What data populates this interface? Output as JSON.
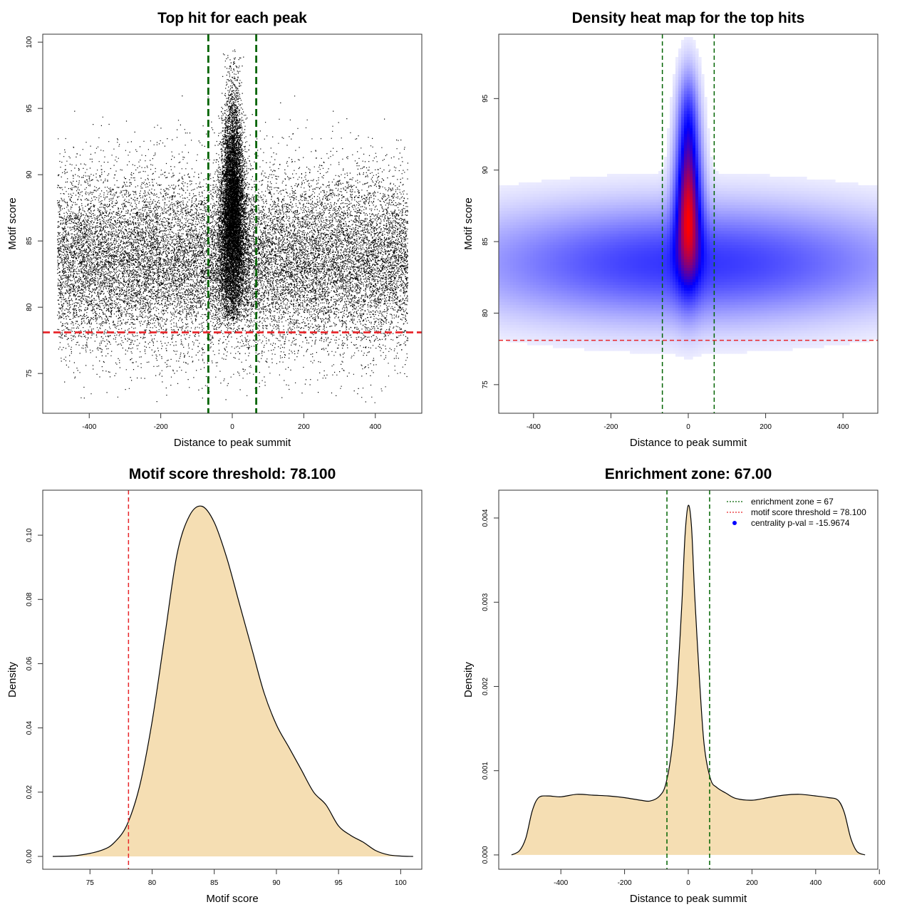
{
  "chart_data": [
    {
      "type": "scatter",
      "title": "Top hit for each peak",
      "xlabel": "Distance to peak summit",
      "ylabel": "Motif score",
      "xlim": [
        -530,
        530
      ],
      "ylim": [
        72,
        100.6
      ],
      "xticks": [
        "-400",
        "-200",
        "0",
        "200",
        "400"
      ],
      "xtick_values": [
        -400,
        -200,
        0,
        200,
        400
      ],
      "yticks": [
        "75",
        "80",
        "85",
        "90",
        "95",
        "100"
      ],
      "ytick_values": [
        75,
        80,
        85,
        90,
        95,
        100
      ],
      "point_count_approx": 30000,
      "background": {
        "x_range": [
          -490,
          490
        ],
        "score_mean": 83.5,
        "score_sd": 3.3
      },
      "central": {
        "x_center": 0,
        "x_sd": 22,
        "score_peak": 87,
        "score_max": 99.6
      },
      "vlines": [
        {
          "x": -67,
          "color": "#006400",
          "style": "dashed"
        },
        {
          "x": 67,
          "color": "#006400",
          "style": "dashed"
        }
      ],
      "hlines": [
        {
          "y": 78.1,
          "color": "#e8262a",
          "style": "dashed"
        }
      ],
      "grid": false,
      "point_color": "#000000"
    },
    {
      "type": "heatmap",
      "title": "Density heat map for the top hits",
      "xlabel": "Distance to peak summit",
      "ylabel": "Motif score",
      "xlim": [
        -490,
        490
      ],
      "ylim": [
        73,
        99.5
      ],
      "xticks": [
        "-400",
        "-200",
        "0",
        "200",
        "400"
      ],
      "xtick_values": [
        -400,
        -200,
        0,
        200,
        400
      ],
      "yticks": [
        "75",
        "80",
        "85",
        "90",
        "95"
      ],
      "ytick_values": [
        75,
        80,
        85,
        90,
        95
      ],
      "colormap": [
        "#ffffff",
        "#0000ff",
        "#ff0000"
      ],
      "density_components": [
        {
          "x": 0,
          "y": 83.5,
          "sx": 380,
          "sy": 2.6,
          "w": 0.45
        },
        {
          "x": 0,
          "y": 87.5,
          "sx": 22,
          "sy": 3.4,
          "w": 1.0
        },
        {
          "x": 0,
          "y": 93.5,
          "sx": 18,
          "sy": 2.5,
          "w": 0.35
        }
      ],
      "vlines": [
        {
          "x": -67,
          "color": "#006400",
          "style": "dashed"
        },
        {
          "x": 67,
          "color": "#006400",
          "style": "dashed"
        }
      ],
      "hlines": [
        {
          "y": 78.1,
          "color": "#e8262a",
          "style": "dashed"
        }
      ],
      "grid": false
    },
    {
      "type": "area",
      "title": "Motif score threshold: 78.100",
      "xlabel": "Motif score",
      "ylabel": "Density",
      "xlim": [
        71.2,
        101.7
      ],
      "ylim": [
        -0.004,
        0.114
      ],
      "xticks": [
        "75",
        "80",
        "85",
        "90",
        "95",
        "100"
      ],
      "xtick_values": [
        75,
        80,
        85,
        90,
        95,
        100
      ],
      "yticks": [
        "0.00",
        "0.02",
        "0.04",
        "0.06",
        "0.08",
        "0.10"
      ],
      "ytick_values": [
        0,
        0.02,
        0.04,
        0.06,
        0.08,
        0.1
      ],
      "x": [
        72,
        74,
        76,
        77,
        78,
        79,
        80,
        81,
        82,
        83,
        84,
        85,
        86,
        87,
        88,
        89,
        90,
        91,
        92,
        93,
        94,
        95,
        96,
        97,
        98,
        99,
        100,
        101
      ],
      "y": [
        0.0,
        0.0003,
        0.002,
        0.0045,
        0.01,
        0.022,
        0.042,
        0.068,
        0.094,
        0.106,
        0.109,
        0.104,
        0.093,
        0.079,
        0.065,
        0.051,
        0.041,
        0.034,
        0.027,
        0.02,
        0.016,
        0.0095,
        0.0065,
        0.0044,
        0.0018,
        0.0005,
        0.0001,
        0.0
      ],
      "fill": "#f5deb3",
      "vlines": [
        {
          "x": 78.1,
          "color": "#e8262a",
          "style": "dashed"
        }
      ],
      "grid": false
    },
    {
      "type": "area",
      "title": "Enrichment zone: 67.00",
      "xlabel": "Distance to peak summit",
      "ylabel": "Density",
      "xlim": [
        -595,
        595
      ],
      "ylim": [
        -0.00017,
        0.00433
      ],
      "xticks": [
        "-400",
        "-200",
        "0",
        "200",
        "400",
        "600"
      ],
      "xtick_values": [
        -400,
        -200,
        0,
        200,
        400,
        600
      ],
      "yticks": [
        "0.000",
        "0.001",
        "0.002",
        "0.003",
        "0.004"
      ],
      "ytick_values": [
        0,
        0.001,
        0.002,
        0.003,
        0.004
      ],
      "x": [
        -555,
        -530,
        -510,
        -490,
        -470,
        -440,
        -400,
        -350,
        -300,
        -250,
        -200,
        -150,
        -120,
        -90,
        -70,
        -50,
        -35,
        -20,
        -10,
        0,
        10,
        20,
        35,
        50,
        70,
        90,
        120,
        150,
        200,
        250,
        300,
        350,
        400,
        440,
        470,
        490,
        510,
        530,
        555
      ],
      "y": [
        0.0,
        5e-05,
        0.0002,
        0.00052,
        0.00068,
        0.0007,
        0.00069,
        0.00072,
        0.00071,
        0.0007,
        0.00068,
        0.00065,
        0.00064,
        0.0007,
        0.00085,
        0.0013,
        0.002,
        0.003,
        0.0038,
        0.00415,
        0.0039,
        0.0031,
        0.0021,
        0.0013,
        0.0009,
        0.0008,
        0.00073,
        0.00067,
        0.00065,
        0.00068,
        0.00071,
        0.00072,
        0.0007,
        0.00068,
        0.00065,
        0.0005,
        0.0002,
        4e-05,
        0.0
      ],
      "fill": "#f5deb3",
      "vlines": [
        {
          "x": -67,
          "color": "#006400",
          "style": "dashed"
        },
        {
          "x": 67,
          "color": "#006400",
          "style": "dashed"
        }
      ],
      "legend": {
        "placement": "top-right",
        "entries": [
          {
            "label": "enrichment zone = 67",
            "color": "#006400",
            "marker": "dotted-line"
          },
          {
            "label": "motif score threshold = 78.100",
            "color": "#e8262a",
            "marker": "dotted-line"
          },
          {
            "label": "centrality p-val = -15.9674",
            "color": "#0000ff",
            "marker": "dot"
          }
        ]
      },
      "grid": false
    }
  ]
}
